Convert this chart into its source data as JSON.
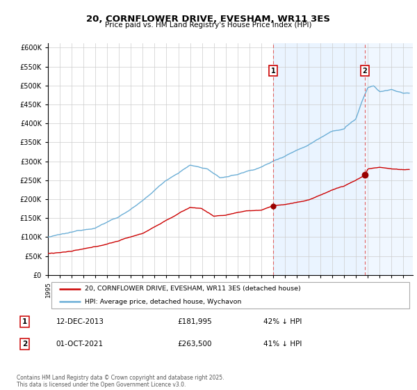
{
  "title": "20, CORNFLOWER DRIVE, EVESHAM, WR11 3ES",
  "subtitle": "Price paid vs. HM Land Registry's House Price Index (HPI)",
  "hpi_color": "#6baed6",
  "price_color": "#cc0000",
  "annotation1_date": "12-DEC-2013",
  "annotation1_price": 181995,
  "annotation1_hpi_pct": "42% ↓ HPI",
  "annotation2_date": "01-OCT-2021",
  "annotation2_price": 263500,
  "annotation2_hpi_pct": "41% ↓ HPI",
  "legend_price": "20, CORNFLOWER DRIVE, EVESHAM, WR11 3ES (detached house)",
  "legend_hpi": "HPI: Average price, detached house, Wychavon",
  "footer": "Contains HM Land Registry data © Crown copyright and database right 2025.\nThis data is licensed under the Open Government Licence v3.0.",
  "ylim": [
    0,
    612500
  ],
  "yticks": [
    0,
    50000,
    100000,
    150000,
    200000,
    250000,
    300000,
    350000,
    400000,
    450000,
    500000,
    550000,
    600000
  ],
  "xmin": 1995.0,
  "xmax": 2025.8,
  "vline1_x": 2014.0,
  "vline2_x": 2021.75,
  "marker1_x": 2014.0,
  "marker1_y": 181995,
  "marker2_x": 2021.75,
  "marker2_y": 263500,
  "shade_color": "#ddeeff",
  "shade_alpha": 0.6
}
